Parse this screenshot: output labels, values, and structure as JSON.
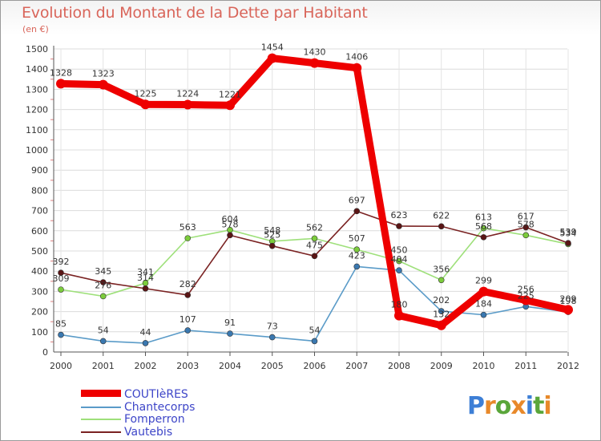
{
  "header": {
    "title": "Evolution du Montant de la Dette par Habitant",
    "subtitle": "(en €)"
  },
  "logo": {
    "letters": [
      {
        "char": "P",
        "color": "#3d7fd6"
      },
      {
        "char": "r",
        "color": "#e8892a"
      },
      {
        "char": "o",
        "color": "#5aa63a"
      },
      {
        "char": "x",
        "color": "#e8892a"
      },
      {
        "char": "i",
        "color": "#3d7fd6"
      },
      {
        "char": "t",
        "color": "#5aa63a"
      },
      {
        "char": "i",
        "color": "#e8892a"
      }
    ]
  },
  "chart_data": {
    "type": "line",
    "title": "Evolution du Montant de la Dette par Habitant",
    "subtitle": "(en €)",
    "xlabel": "",
    "ylabel": "",
    "x": [
      "2000",
      "2001",
      "2002",
      "2003",
      "2004",
      "2005",
      "2006",
      "2007",
      "2008",
      "2009",
      "2010",
      "2011",
      "2012"
    ],
    "ylim": [
      0,
      1500
    ],
    "yticks": [
      0,
      100,
      200,
      300,
      400,
      500,
      600,
      700,
      800,
      900,
      1000,
      1100,
      1200,
      1300,
      1400,
      1500
    ],
    "grid": true,
    "legend_position": "bottom-left",
    "series": [
      {
        "name": "COUTIèRES",
        "color": "#ee0000",
        "marker": "#ee0000",
        "values": [
          1328,
          1323,
          1225,
          1224,
          1221,
          1454,
          1430,
          1406,
          180,
          132,
          299,
          256,
          209
        ]
      },
      {
        "name": "Chantecorps",
        "color": "#5a9bc8",
        "marker": "#3a78b0",
        "values": [
          85,
          54,
          44,
          107,
          91,
          73,
          54,
          423,
          404,
          202,
          184,
          225,
          198
        ]
      },
      {
        "name": "Fomperron",
        "color": "#9ee07a",
        "marker": "#7ccc3c",
        "values": [
          309,
          276,
          341,
          563,
          604,
          548,
          562,
          507,
          450,
          356,
          613,
          578,
          534
        ]
      },
      {
        "name": "Vautebis",
        "color": "#7a2222",
        "marker": "#5a1515",
        "values": [
          392,
          345,
          314,
          282,
          578,
          525,
          475,
          697,
          623,
          622,
          568,
          617,
          539
        ]
      }
    ]
  }
}
